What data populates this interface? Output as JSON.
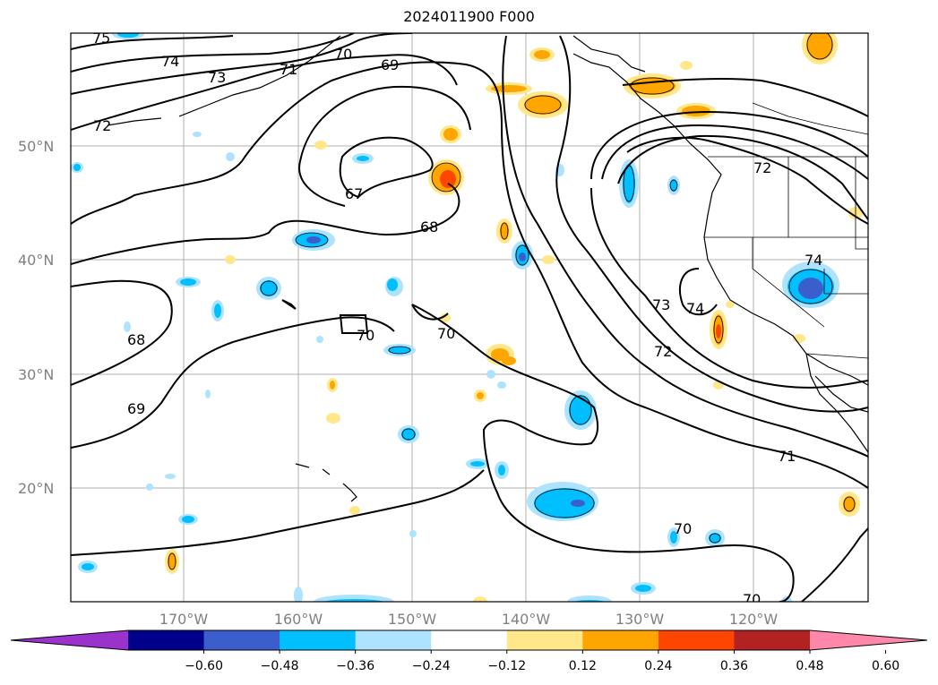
{
  "title": "2024011900 F000",
  "lat_labels": [
    "50°N",
    "40°N",
    "30°N",
    "20°N"
  ],
  "lon_labels": [
    "170°W",
    "160°W",
    "150°W",
    "140°W",
    "130°W",
    "120°W"
  ],
  "colorbar": {
    "ticks": [
      "−0.60",
      "−0.48",
      "−0.36",
      "−0.24",
      "−0.12",
      "0.12",
      "0.24",
      "0.36",
      "0.48",
      "0.60"
    ],
    "colors": [
      "#9933cc",
      "#00008b",
      "#3a5fcd",
      "#00bfff",
      "#aee3ff",
      "#ffffff",
      "#ffe78a",
      "#ffa500",
      "#ff4500",
      "#b22222",
      "#ff88aa"
    ]
  },
  "contour_labels": [
    "75",
    "74",
    "73",
    "72",
    "71",
    "70",
    "69",
    "67",
    "68",
    "70",
    "70",
    "68",
    "69",
    "72",
    "74",
    "73",
    "74",
    "72",
    "71",
    "70",
    "70"
  ]
}
